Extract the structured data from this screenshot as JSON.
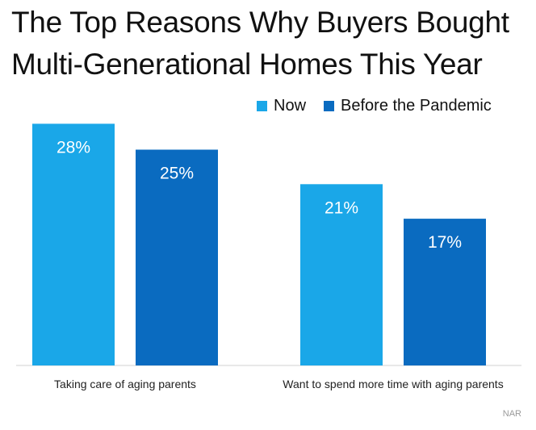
{
  "title_line1": "The Top Reasons Why Buyers Bought",
  "title_line2": "Multi-Generational Homes This Year",
  "source": "NAR",
  "colors": {
    "now": "#1aa7e8",
    "before": "#0a6bc0",
    "axis": "#d0d0d0"
  },
  "chart_data": {
    "type": "bar",
    "categories": [
      "Taking care of aging parents",
      "Want to spend more time with aging parents"
    ],
    "series": [
      {
        "name": "Now",
        "values": [
          28,
          21
        ],
        "labels": [
          "28%",
          "21%"
        ]
      },
      {
        "name": "Before the Pandemic",
        "values": [
          25,
          17
        ],
        "labels": [
          "25%",
          "17%"
        ]
      }
    ],
    "title": "The Top Reasons Why Buyers Bought Multi-Generational Homes This Year",
    "legend": "top-right",
    "grid": false,
    "ylim": [
      0,
      30
    ]
  }
}
